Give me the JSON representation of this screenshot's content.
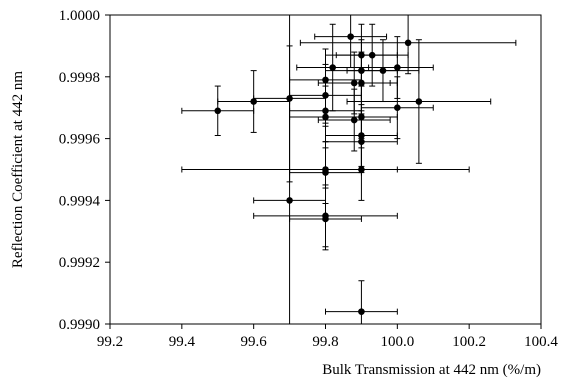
{
  "chart_data": {
    "type": "scatter",
    "title": "",
    "xlabel": "Bulk Transmission at 442 nm (%/m)",
    "ylabel": "Reflection Coefficient at 442 nm",
    "xlim": [
      99.2,
      100.4
    ],
    "ylim": [
      0.999,
      1.0
    ],
    "x_ticks": [
      "99.2",
      "99.4",
      "99.6",
      "99.8",
      "100.0",
      "100.2",
      "100.4"
    ],
    "y_ticks": [
      "0.9990",
      "0.9992",
      "0.9994",
      "0.9996",
      "0.9998",
      "1.0000"
    ],
    "grid": false,
    "legend": "none",
    "marker_color": "#000000",
    "points": [
      {
        "x": 99.5,
        "y": 0.99969,
        "xerr": 0.1,
        "yerr": 8e-05
      },
      {
        "x": 99.6,
        "y": 0.99972,
        "xerr": 0.1,
        "yerr": 0.0001
      },
      {
        "x": 99.7,
        "y": 0.99973,
        "xerr": 0.1,
        "yerr": 0.00027
      },
      {
        "x": 99.7,
        "y": 0.9994,
        "xerr": 0.1,
        "yerr": 0.0005
      },
      {
        "x": 99.8,
        "y": 0.99979,
        "xerr": 0.1,
        "yerr": 0.0001
      },
      {
        "x": 99.8,
        "y": 0.99974,
        "xerr": 0.1,
        "yerr": 0.0001
      },
      {
        "x": 99.8,
        "y": 0.99969,
        "xerr": 0.1,
        "yerr": 0.0001
      },
      {
        "x": 99.8,
        "y": 0.99967,
        "xerr": 0.1,
        "yerr": 0.0001
      },
      {
        "x": 99.8,
        "y": 0.9995,
        "xerr": 0.4,
        "yerr": 0.00015
      },
      {
        "x": 99.8,
        "y": 0.99949,
        "xerr": 0.1,
        "yerr": 0.0001
      },
      {
        "x": 99.8,
        "y": 0.99935,
        "xerr": 0.2,
        "yerr": 0.0001
      },
      {
        "x": 99.8,
        "y": 0.99934,
        "xerr": 0.1,
        "yerr": 0.0001
      },
      {
        "x": 99.82,
        "y": 0.99983,
        "xerr": 0.1,
        "yerr": 0.00014
      },
      {
        "x": 99.87,
        "y": 0.99993,
        "xerr": 0.1,
        "yerr": 0.0001
      },
      {
        "x": 99.88,
        "y": 0.99978,
        "xerr": 0.1,
        "yerr": 0.0001
      },
      {
        "x": 99.88,
        "y": 0.99966,
        "xerr": 0.1,
        "yerr": 0.0001
      },
      {
        "x": 99.9,
        "y": 0.99987,
        "xerr": 0.1,
        "yerr": 0.0001
      },
      {
        "x": 99.9,
        "y": 0.99982,
        "xerr": 0.1,
        "yerr": 0.0001
      },
      {
        "x": 99.9,
        "y": 0.99978,
        "xerr": 0.1,
        "yerr": 0.0001
      },
      {
        "x": 99.9,
        "y": 0.99967,
        "xerr": 0.1,
        "yerr": 0.0001
      },
      {
        "x": 99.9,
        "y": 0.99961,
        "xerr": 0.1,
        "yerr": 0.0001
      },
      {
        "x": 99.9,
        "y": 0.99959,
        "xerr": 0.1,
        "yerr": 0.0001
      },
      {
        "x": 99.9,
        "y": 0.9995,
        "xerr": 0.1,
        "yerr": 0.0001
      },
      {
        "x": 99.9,
        "y": 0.99904,
        "xerr": 0.1,
        "yerr": 0.0001
      },
      {
        "x": 99.93,
        "y": 0.99987,
        "xerr": 0.1,
        "yerr": 0.0001
      },
      {
        "x": 99.96,
        "y": 0.99982,
        "xerr": 0.1,
        "yerr": 0.0001
      },
      {
        "x": 100.0,
        "y": 0.99983,
        "xerr": 0.1,
        "yerr": 0.0001
      },
      {
        "x": 100.0,
        "y": 0.9997,
        "xerr": 0.1,
        "yerr": 0.0001
      },
      {
        "x": 100.03,
        "y": 0.99991,
        "xerr": 0.3,
        "yerr": 0.0001
      },
      {
        "x": 100.06,
        "y": 0.99972,
        "xerr": 0.2,
        "yerr": 0.0002
      }
    ]
  }
}
